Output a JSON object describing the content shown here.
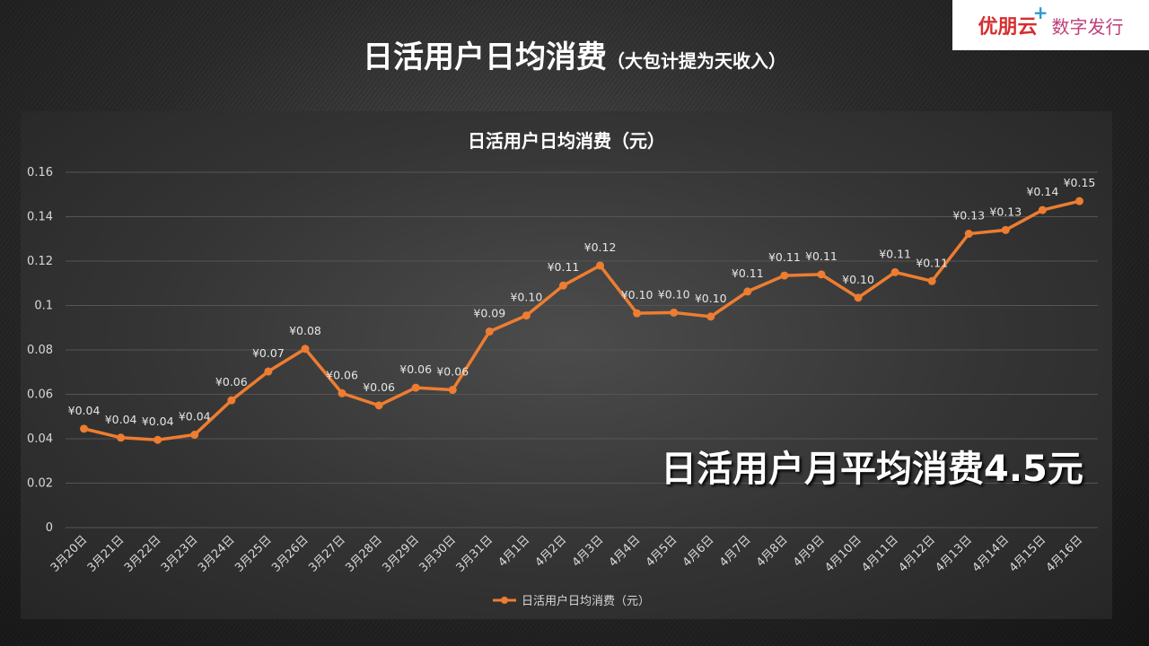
{
  "logo": {
    "brand": "优朋云",
    "plus": "+",
    "subtitle": "数字发行"
  },
  "slide": {
    "title": "日活用户日均消费",
    "subtitle": "（大包计提为天收入）",
    "callout": "日活用户月平均消费4.5元"
  },
  "colors": {
    "series": "#ed7d31",
    "grid": "#555555",
    "text": "#d9d9d9"
  },
  "chart_data": {
    "type": "line",
    "title": "日活用户日均消费（元）",
    "categories": [
      "3月20日",
      "3月21日",
      "3月22日",
      "3月23日",
      "3月24日",
      "3月25日",
      "3月26日",
      "3月27日",
      "3月28日",
      "3月29日",
      "3月30日",
      "3月31日",
      "4月1日",
      "4月2日",
      "4月3日",
      "4月4日",
      "4月5日",
      "4月6日",
      "4月7日",
      "4月8日",
      "4月9日",
      "4月10日",
      "4月11日",
      "4月12日",
      "4月13日",
      "4月14日",
      "4月15日",
      "4月16日"
    ],
    "series": [
      {
        "name": "日活用户日均消费（元）",
        "values": [
          0.0445,
          0.0405,
          0.0395,
          0.0418,
          0.0573,
          0.0703,
          0.0805,
          0.0605,
          0.055,
          0.063,
          0.062,
          0.0883,
          0.0955,
          0.109,
          0.118,
          0.0965,
          0.0968,
          0.095,
          0.1063,
          0.1135,
          0.114,
          0.1035,
          0.115,
          0.111,
          0.1323,
          0.134,
          0.143,
          0.147
        ],
        "labels": [
          "¥0.04",
          "¥0.04",
          "¥0.04",
          "¥0.04",
          "¥0.06",
          "¥0.07",
          "¥0.08",
          "¥0.06",
          "¥0.06",
          "¥0.06",
          "¥0.06",
          "¥0.09",
          "¥0.10",
          "¥0.11",
          "¥0.12",
          "¥0.10",
          "¥0.10",
          "¥0.10",
          "¥0.11",
          "¥0.11",
          "¥0.11",
          "¥0.10",
          "¥0.11",
          "¥0.11",
          "¥0.13",
          "¥0.13",
          "¥0.14",
          "¥0.15"
        ]
      }
    ],
    "yticks": [
      "0",
      "0.02",
      "0.04",
      "0.06",
      "0.08",
      "0.1",
      "0.12",
      "0.14",
      "0.16"
    ],
    "ylim": [
      0,
      0.16
    ],
    "grid": true,
    "legend": "bottom"
  }
}
